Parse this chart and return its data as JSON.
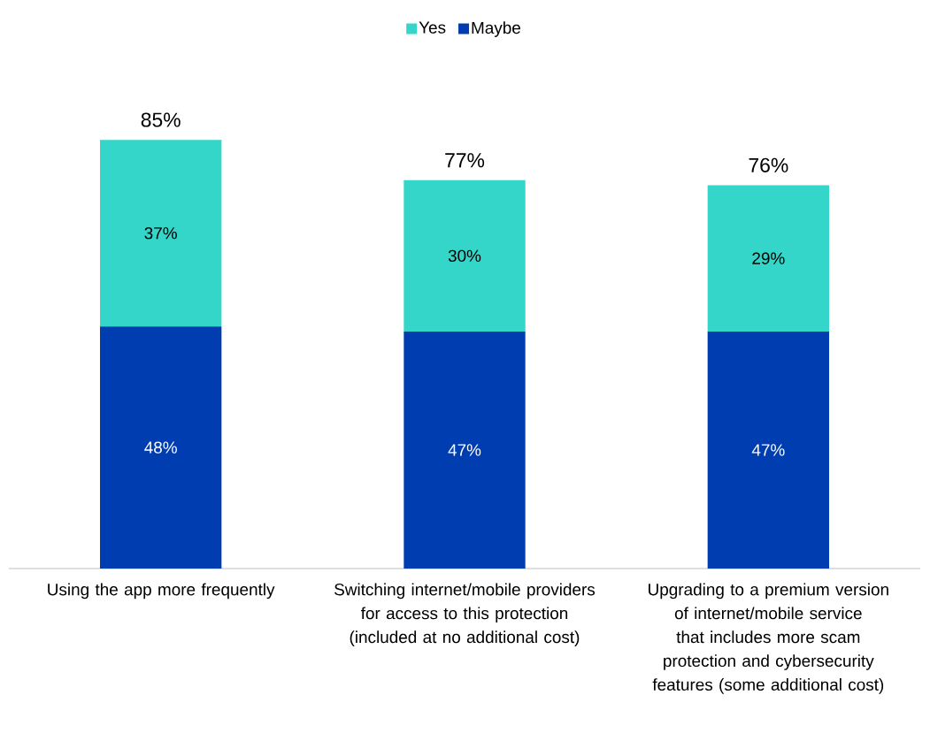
{
  "chart_data": {
    "type": "bar",
    "stacked": true,
    "legend": "top",
    "categories": [
      "Using the app more frequently",
      "Switching internet/mobile providers for access to this protection (included at no additional cost)",
      "Upgrading to a premium version of internet/mobile service that includes more scam protection and cybersecurity features (some additional cost)"
    ],
    "series": [
      {
        "name": "Maybe",
        "color": "#003db0",
        "values": [
          48,
          47,
          47
        ],
        "value_labels": [
          "48%",
          "47%",
          "47%"
        ]
      },
      {
        "name": "Yes",
        "color": "#33d6c8",
        "values": [
          37,
          30,
          29
        ],
        "value_labels": [
          "37%",
          "30%",
          "29%"
        ]
      }
    ],
    "totals": [
      "85%",
      "77%",
      "76%"
    ]
  }
}
